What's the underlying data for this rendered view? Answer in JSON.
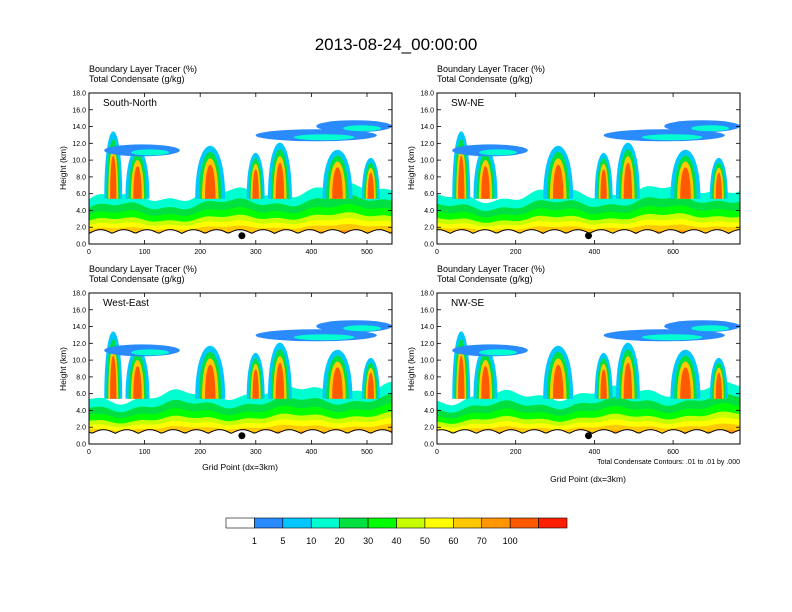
{
  "chart_data": {
    "type": "heatmap",
    "title": "2013-08-24_00:00:00",
    "variable_labels": [
      "Boundary Layer Tracer   (%)",
      "Total Condensate   (g/kg)"
    ],
    "contour_note": "Total Condensate Contours: .01 to .01 by .000",
    "colorbar": {
      "levels": [
        "1",
        "5",
        "10",
        "20",
        "30",
        "40",
        "50",
        "60",
        "70",
        "100"
      ],
      "colors": [
        "#ffffff",
        "#2a8bff",
        "#00c8ff",
        "#00ffd0",
        "#00e040",
        "#00ff00",
        "#c8ff00",
        "#ffff00",
        "#ffc800",
        "#ff9600",
        "#ff5a00",
        "#ff1e00"
      ]
    },
    "ylabel": "Height (km)",
    "xlabel": "Grid Point (dx=3km)",
    "yticks": [
      "0.0",
      "2.0",
      "4.0",
      "6.0",
      "8.0",
      "10.0",
      "12.0",
      "14.0",
      "16.0",
      "18.0"
    ],
    "ylim": [
      0,
      18
    ],
    "panels": [
      {
        "name": "South-North",
        "xlim": [
          0,
          545
        ],
        "xticks": [
          "0",
          "100",
          "200",
          "300",
          "400",
          "500"
        ],
        "marker_x": 275
      },
      {
        "name": "SW-NE",
        "xlim": [
          0,
          770
        ],
        "xticks": [
          "0",
          "200",
          "400",
          "600"
        ],
        "marker_x": 385
      },
      {
        "name": "West-East",
        "xlim": [
          0,
          545
        ],
        "xticks": [
          "0",
          "100",
          "200",
          "300",
          "400",
          "500"
        ],
        "marker_x": 275
      },
      {
        "name": "NW-SE",
        "xlim": [
          0,
          770
        ],
        "xticks": [
          "0",
          "200",
          "400",
          "600"
        ],
        "marker_x": 385
      }
    ]
  }
}
